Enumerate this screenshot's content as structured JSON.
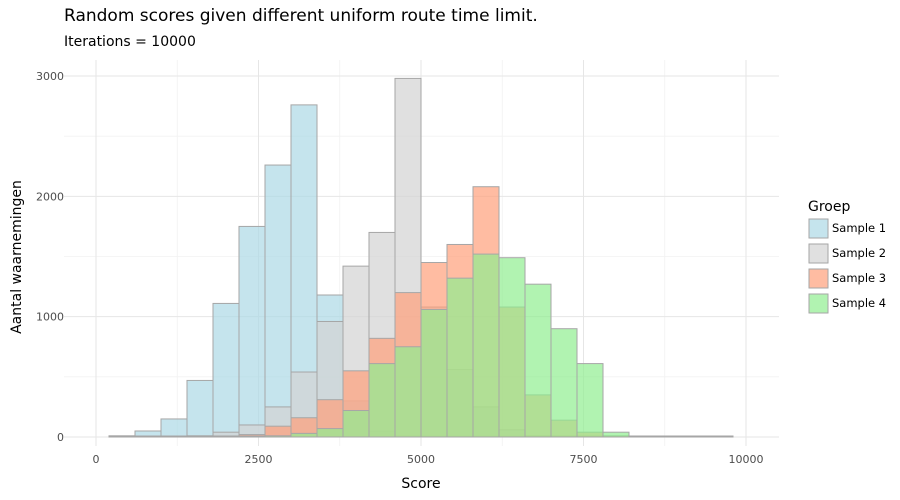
{
  "chart_data": {
    "type": "bar",
    "title": "Random scores given different uniform route time limit.",
    "subtitle": "Iterations = 10000",
    "xlabel": "Score",
    "ylabel": "Aantal waarnemingen",
    "xlim": [
      0,
      10000
    ],
    "ylim": [
      0,
      3000
    ],
    "xticks": [
      0,
      2500,
      5000,
      7500,
      10000
    ],
    "yticks": [
      0,
      1000,
      2000,
      3000
    ],
    "xtick_labels": [
      "0",
      "2500",
      "5000",
      "7500",
      "10000"
    ],
    "ytick_labels": [
      "0",
      "1000",
      "2000",
      "3000"
    ],
    "bin_edges": [
      200,
      600,
      1000,
      1400,
      1800,
      2200,
      2600,
      3000,
      3400,
      3800,
      4200,
      4600,
      5000,
      5400,
      5800,
      6200,
      6600,
      7000,
      7400,
      7800,
      8200,
      8600,
      9000,
      9400,
      9800
    ],
    "legend_title": "Groep",
    "legend_position": "right",
    "grid": true,
    "series": [
      {
        "name": "Sample 1",
        "color": "#add8e6",
        "values": [
          10,
          50,
          150,
          470,
          1110,
          1750,
          2260,
          2760,
          1180,
          300,
          50,
          10,
          0,
          0,
          0,
          0,
          0,
          0,
          0,
          0,
          0,
          0,
          0,
          0
        ]
      },
      {
        "name": "Sample 2",
        "color": "#d3d3d3",
        "values": [
          0,
          0,
          0,
          10,
          40,
          100,
          250,
          540,
          960,
          1420,
          1700,
          2980,
          1080,
          560,
          250,
          60,
          10,
          0,
          0,
          0,
          0,
          0,
          0,
          0
        ]
      },
      {
        "name": "Sample 3",
        "color": "#ffa07a",
        "values": [
          0,
          0,
          0,
          0,
          0,
          20,
          90,
          160,
          310,
          550,
          820,
          1200,
          1450,
          1600,
          2080,
          1080,
          350,
          140,
          40,
          10,
          0,
          0,
          0,
          0
        ]
      },
      {
        "name": "Sample 4",
        "color": "#90ee90",
        "values": [
          0,
          0,
          0,
          0,
          0,
          0,
          10,
          30,
          70,
          220,
          610,
          750,
          1060,
          1320,
          1520,
          1490,
          1270,
          900,
          610,
          40,
          0,
          0,
          0,
          0
        ]
      }
    ]
  }
}
